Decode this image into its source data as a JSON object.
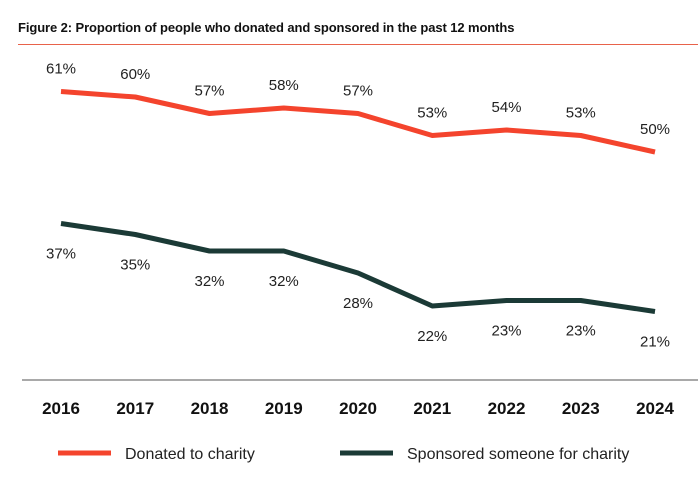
{
  "title": "Figure 2: Proportion of people who donated and sponsored in the past 12 months",
  "chart_data": {
    "type": "line",
    "x": [
      "2016",
      "2017",
      "2018",
      "2019",
      "2020",
      "2021",
      "2022",
      "2023",
      "2024"
    ],
    "series": [
      {
        "name": "Donated to charity",
        "color": "#f4442d",
        "values": [
          61,
          60,
          57,
          58,
          57,
          53,
          54,
          53,
          50
        ],
        "labels": [
          "61%",
          "60%",
          "57%",
          "58%",
          "57%",
          "53%",
          "54%",
          "53%",
          "50%"
        ]
      },
      {
        "name": "Sponsored someone for charity",
        "color": "#1b3a36",
        "values": [
          37,
          35,
          32,
          32,
          28,
          22,
          23,
          23,
          21
        ],
        "labels": [
          "37%",
          "35%",
          "32%",
          "32%",
          "28%",
          "22%",
          "23%",
          "23%",
          "21%"
        ]
      }
    ],
    "ylim": [
      10,
      70
    ],
    "axis_color": "#a9a9a9",
    "grid": false,
    "legend_position": "bottom"
  }
}
